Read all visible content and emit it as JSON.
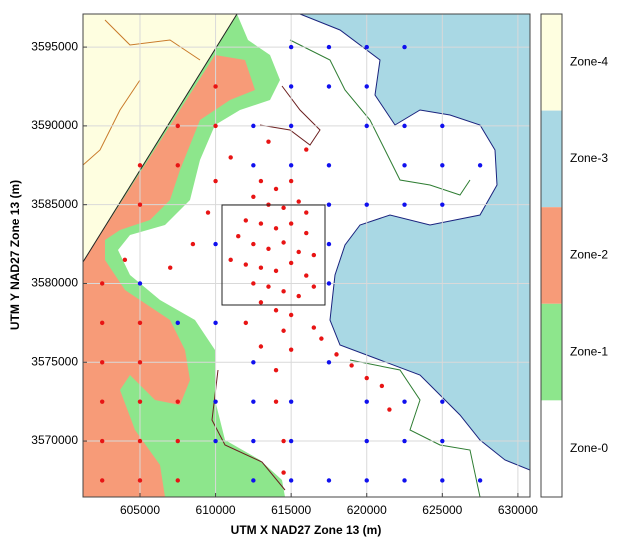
{
  "chart_data": {
    "type": "scatter",
    "xlabel": "UTM X NAD27 Zone 13 (m)",
    "ylabel": "UTM Y NAD27 Zone 13 (m)",
    "xlim": [
      601230,
      630800
    ],
    "ylim": [
      3566450,
      3597100
    ],
    "xticks": [
      605000,
      610000,
      615000,
      620000,
      625000,
      630000
    ],
    "yticks": [
      3570000,
      3575000,
      3580000,
      3585000,
      3590000,
      3595000
    ],
    "grid": true,
    "zones": [
      {
        "label": "Zone-4",
        "color": "#fefee0"
      },
      {
        "label": "Zone-3",
        "color": "#a9d8e4"
      },
      {
        "label": "Zone-2",
        "color": "#f79b78"
      },
      {
        "label": "Zone-1",
        "color": "#8de68c"
      },
      {
        "label": "Zone-0",
        "color": "#ffffff"
      }
    ],
    "series": [
      {
        "color": "#1010ee",
        "x": [
          615000,
          617500,
          620000,
          622500,
          615000,
          617500,
          620000,
          612500,
          615000,
          620000,
          622500,
          625000,
          612500,
          615000,
          617500,
          622500,
          625000,
          627500,
          617500,
          620000,
          622500,
          625000,
          610000,
          617500,
          605000,
          617500,
          607500,
          610000,
          612500,
          617500,
          610000,
          612500,
          615000,
          620000,
          622500,
          625000,
          610000,
          612500,
          615000,
          620000,
          622500,
          625000,
          612500,
          615000,
          617500,
          620000,
          622500,
          625000,
          627500
        ],
        "y": [
          3595000,
          3595000,
          3595000,
          3595000,
          3592500,
          3592500,
          3592500,
          3590000,
          3590000,
          3590000,
          3590000,
          3590000,
          3587500,
          3587500,
          3587500,
          3587500,
          3587500,
          3587500,
          3585000,
          3585000,
          3585000,
          3585000,
          3582500,
          3582500,
          3580000,
          3580000,
          3577500,
          3577500,
          3575000,
          3575000,
          3572500,
          3572500,
          3572500,
          3572500,
          3572500,
          3572500,
          3570000,
          3570000,
          3570000,
          3570000,
          3570000,
          3570000,
          3567500,
          3567500,
          3567500,
          3567500,
          3567500,
          3567500,
          3567500
        ]
      },
      {
        "color": "#e81414",
        "x": [
          607500,
          605000,
          607500,
          605000,
          602500,
          602500,
          605000,
          602500,
          605000,
          602500,
          605000,
          607500,
          602500,
          605000,
          607500,
          602500,
          605000,
          607500,
          610000,
          610000,
          613000,
          614000,
          615000,
          612500,
          613500,
          614500,
          615500,
          616000,
          612000,
          613000,
          614000,
          615000,
          616000,
          611500,
          612500,
          613500,
          614500,
          615500,
          616500,
          611000,
          612000,
          613000,
          614000,
          615000,
          616000,
          612500,
          613500,
          614500,
          615500,
          616500,
          613000,
          614000,
          615000,
          612000,
          614500,
          616500,
          613000,
          615000,
          617000,
          618000,
          619000,
          614000,
          614000,
          620000,
          621000,
          609500,
          608500,
          607000,
          604000,
          610000,
          611000,
          613500,
          616000,
          621500,
          614500,
          614500
        ],
        "y": [
          3590000,
          3587500,
          3587500,
          3585000,
          3580000,
          3577500,
          3577500,
          3575000,
          3575000,
          3572500,
          3572500,
          3572500,
          3570000,
          3570000,
          3570000,
          3567500,
          3567500,
          3567500,
          3590000,
          3592500,
          3586500,
          3586000,
          3586500,
          3585500,
          3585000,
          3584800,
          3585200,
          3584500,
          3584000,
          3583800,
          3583500,
          3583800,
          3583200,
          3583000,
          3582500,
          3582200,
          3582600,
          3582000,
          3581800,
          3581500,
          3581200,
          3581000,
          3580800,
          3581300,
          3580500,
          3580000,
          3579800,
          3579500,
          3579200,
          3579800,
          3578800,
          3578300,
          3578000,
          3577500,
          3577000,
          3577200,
          3576000,
          3575800,
          3576500,
          3575500,
          3574800,
          3574500,
          3572500,
          3574000,
          3573500,
          3584500,
          3582500,
          3581000,
          3581500,
          3586500,
          3588000,
          3589000,
          3588500,
          3572000,
          3570000,
          3568000
        ]
      }
    ]
  }
}
